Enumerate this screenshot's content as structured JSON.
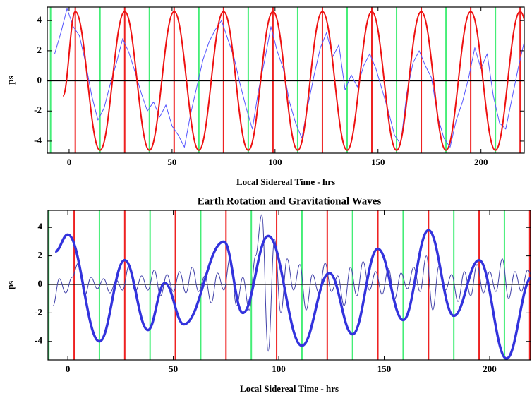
{
  "chart_data": [
    {
      "type": "line",
      "xlabel": "Local Sidereal Time - hrs",
      "ylabel": "ps",
      "xlim": [
        -10.6,
        221
      ],
      "ylim": [
        -4.8,
        4.9
      ],
      "xticks": [
        0,
        50,
        100,
        150,
        200
      ],
      "yticks": [
        -4,
        -2,
        0,
        2,
        4
      ],
      "vlines": [
        {
          "color": "#44ee77",
          "x": [
            -9,
            15,
            39,
            63,
            87,
            111,
            135,
            159,
            183,
            207
          ]
        },
        {
          "color": "#ee2222",
          "x": [
            3,
            27,
            51,
            75,
            99,
            123,
            147,
            171,
            195,
            219
          ]
        }
      ],
      "series": [
        {
          "color": "#5555ff",
          "line_width": 1,
          "smooth": false,
          "x": [
            -7,
            -4,
            -1,
            2,
            5,
            8,
            11,
            14,
            17,
            20,
            23,
            26,
            29,
            32,
            35,
            38,
            41,
            44,
            47,
            50,
            53,
            56,
            59,
            62,
            65,
            68,
            71,
            74,
            77,
            80,
            83,
            86,
            89,
            92,
            95,
            98,
            101,
            104,
            107,
            110,
            113,
            116,
            119,
            122,
            125,
            128,
            131,
            134,
            137,
            140,
            143,
            146,
            149,
            152,
            155,
            158,
            161,
            164,
            167,
            170,
            173,
            176,
            179,
            182,
            185,
            188,
            191,
            194,
            197,
            200,
            203,
            206,
            209,
            212,
            215,
            218,
            221,
            224,
            227,
            230
          ],
          "values": [
            1.8,
            3.2,
            4.8,
            3.6,
            3.0,
            1.2,
            -1.0,
            -2.6,
            -1.8,
            -0.2,
            1.2,
            2.8,
            1.9,
            0.6,
            -0.8,
            -2.0,
            -1.4,
            -2.4,
            -1.6,
            -3.0,
            -3.6,
            -4.4,
            -2.2,
            -0.4,
            1.4,
            2.6,
            3.4,
            4.0,
            2.8,
            1.6,
            -0.2,
            -1.8,
            -3.2,
            -0.6,
            1.4,
            3.6,
            2.0,
            0.8,
            -1.4,
            -2.8,
            -3.8,
            -1.6,
            0.4,
            2.2,
            3.2,
            1.6,
            2.4,
            -0.6,
            0.4,
            -0.4,
            1.0,
            1.8,
            0.8,
            -0.6,
            -2.0,
            -3.6,
            -4.2,
            -0.8,
            1.2,
            2.0,
            1.0,
            0.2,
            -2.4,
            -3.8,
            -4.4,
            -2.6,
            -1.4,
            0.2,
            2.2,
            0.8,
            1.8,
            -1.0,
            -2.8,
            -3.2,
            -1.2,
            0.8,
            2.6,
            0.4,
            -1.8,
            -2.4
          ]
        },
        {
          "color": "#ee1111",
          "line_width": 2,
          "smooth": true,
          "x": [
            -3,
            3,
            15,
            27,
            39,
            51,
            63,
            75,
            87,
            99,
            111,
            123,
            135,
            147,
            159,
            171,
            183,
            195,
            207,
            219,
            231
          ],
          "values": [
            -1,
            4.6,
            -4.6,
            4.6,
            -4.6,
            4.6,
            -4.6,
            4.6,
            -4.6,
            4.6,
            -4.6,
            4.6,
            -4.6,
            4.6,
            -4.6,
            4.6,
            -4.6,
            4.6,
            -4.6,
            4.6,
            -4.6
          ]
        }
      ]
    },
    {
      "type": "line",
      "title": "Earth Rotation and Gravitational Waves",
      "xlabel": "Local Sidereal Time - hrs",
      "ylabel": "ps",
      "xlim": [
        -9.4,
        219.4
      ],
      "ylim": [
        -5.3,
        5.2
      ],
      "xticks": [
        0,
        50,
        100,
        150,
        200
      ],
      "yticks": [
        -4,
        -2,
        0,
        2,
        4
      ],
      "vlines": [
        {
          "color": "#44ee77",
          "x": [
            -9,
            15,
            39,
            63,
            87,
            111,
            135,
            159,
            183,
            207
          ]
        },
        {
          "color": "#ee2222",
          "x": [
            3,
            27,
            51,
            75,
            99,
            123,
            147,
            171,
            195,
            219
          ]
        }
      ],
      "series": [
        {
          "color": "#4444aa",
          "line_width": 1,
          "smooth": true,
          "x": [
            -7,
            -4,
            -1,
            2,
            5,
            8,
            11,
            14,
            17,
            20,
            23,
            26,
            29,
            32,
            35,
            38,
            41,
            44,
            47,
            50,
            53,
            56,
            59,
            62,
            65,
            68,
            71,
            74,
            77,
            80,
            83,
            86,
            89,
            92,
            95,
            98,
            101,
            104,
            107,
            110,
            113,
            116,
            119,
            122,
            125,
            128,
            131,
            134,
            137,
            140,
            143,
            146,
            149,
            152,
            155,
            158,
            161,
            164,
            167,
            170,
            173,
            176,
            179,
            182,
            185,
            188,
            191,
            194,
            197,
            200,
            203,
            206,
            209,
            212,
            215,
            218,
            221
          ],
          "values": [
            -1.5,
            0.4,
            -0.6,
            0.5,
            1.5,
            -0.8,
            0.5,
            -0.3,
            0.4,
            -0.6,
            0.3,
            -0.4,
            1.3,
            -0.5,
            0.6,
            -0.4,
            1.0,
            -0.8,
            0.7,
            -0.5,
            0.9,
            -0.6,
            1.2,
            -0.5,
            0.6,
            -1.3,
            0.8,
            -0.4,
            1.9,
            -1.5,
            0.5,
            -1.8,
            2.0,
            4.9,
            -4.7,
            3.2,
            -2.0,
            1.8,
            -0.4,
            1.4,
            -1.8,
            0.7,
            -0.6,
            1.5,
            -0.5,
            0.6,
            -1.5,
            1.2,
            -0.8,
            1.6,
            -0.4,
            0.9,
            -0.7,
            1.1,
            -1.0,
            0.8,
            -0.3,
            1.2,
            -0.5,
            2.0,
            -1.8,
            1.3,
            -0.4,
            0.7,
            -1.2,
            0.9,
            -0.8,
            1.4,
            -0.6,
            0.9,
            -0.5,
            1.8,
            -1.0,
            0.9,
            -0.5,
            1.0,
            0.3
          ]
        },
        {
          "color": "#3333dd",
          "line_width": 3.5,
          "smooth": true,
          "x": [
            -6,
            0,
            15,
            27,
            38,
            46,
            55,
            74,
            83,
            95,
            111,
            124,
            135,
            147,
            159,
            171,
            183,
            195,
            208,
            220
          ],
          "values": [
            2.3,
            3.5,
            -4.0,
            1.7,
            -3.2,
            0.1,
            -2.8,
            3.0,
            -2.0,
            3.4,
            -4.3,
            0.8,
            -3.5,
            2.5,
            -2.5,
            3.8,
            -2.2,
            1.7,
            -5.2,
            0.5
          ]
        }
      ]
    }
  ]
}
